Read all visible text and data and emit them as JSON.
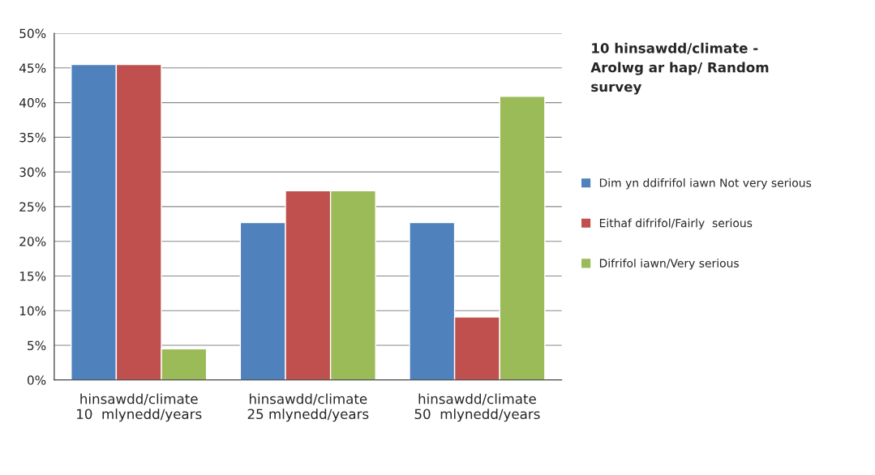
{
  "chart_data": {
    "type": "bar",
    "title": "10 hinsawdd/climate -\nArolwg ar hap/ Random\nsurvey",
    "categories": [
      "hinsawdd/climate\n10  mlynedd/years",
      "hinsawdd/climate\n25 mlynedd/years",
      "hinsawdd/climate\n50  mlynedd/years"
    ],
    "series": [
      {
        "name": "Dim yn ddifrifol iawn Not very serious",
        "color": "#4f81bd",
        "values": [
          45.5,
          22.7,
          22.7
        ]
      },
      {
        "name": "Eithaf difrifol/Fairly  serious",
        "color": "#c0504d",
        "values": [
          45.5,
          27.3,
          9.1
        ]
      },
      {
        "name": "Difrifol iawn/Very serious",
        "color": "#9bbb59",
        "values": [
          4.5,
          27.3,
          40.9
        ]
      }
    ],
    "ylim": [
      0,
      50
    ],
    "yticks": [
      {
        "value": 0,
        "label": "0%"
      },
      {
        "value": 5,
        "label": "5%"
      },
      {
        "value": 10,
        "label": "10%"
      },
      {
        "value": 15,
        "label": "15%"
      },
      {
        "value": 20,
        "label": "20%"
      },
      {
        "value": 25,
        "label": "25%"
      },
      {
        "value": 30,
        "label": "30%"
      },
      {
        "value": 35,
        "label": "35%"
      },
      {
        "value": 40,
        "label": "40%"
      },
      {
        "value": 45,
        "label": "45%"
      },
      {
        "value": 50,
        "label": "50%"
      }
    ],
    "grid": "y",
    "legend": "right"
  }
}
